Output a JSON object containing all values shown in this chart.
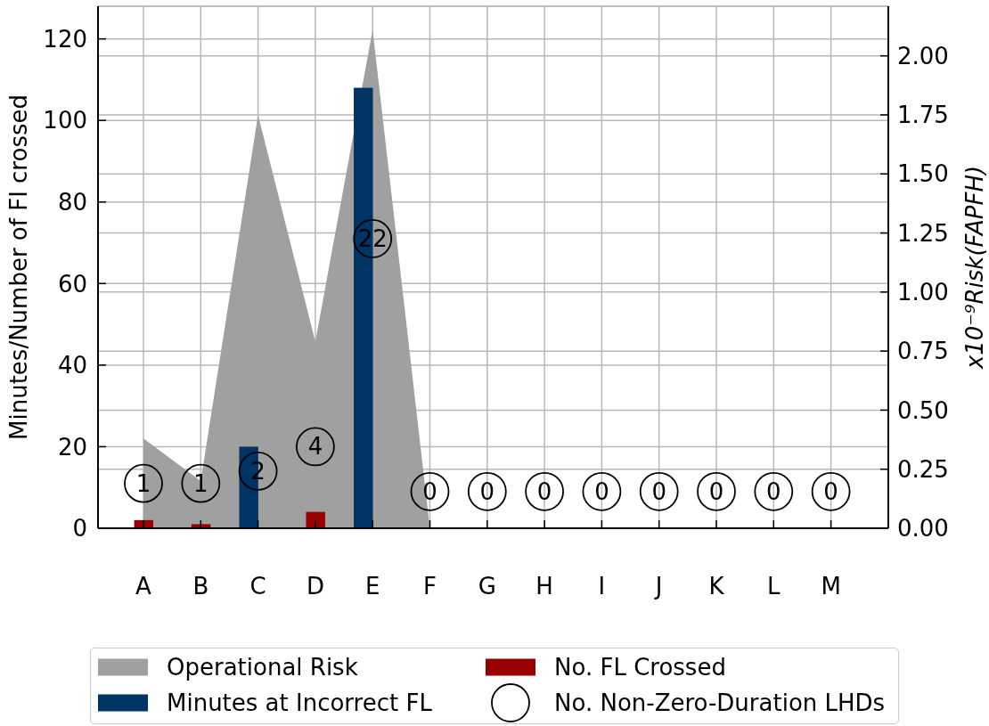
{
  "chart_data": {
    "type": "bar",
    "ylabel": "Minutes/Number of FI crossed",
    "y2label": "x10⁻⁹Risk(FAPFH)",
    "categories": [
      "A",
      "B",
      "C",
      "D",
      "E",
      "F",
      "G",
      "H",
      "I",
      "J",
      "K",
      "L",
      "M"
    ],
    "series": [
      {
        "name": "Operational Risk",
        "type": "area",
        "axis": "y2",
        "color": "#a0a0a0",
        "values": [
          0.38,
          0.2,
          1.75,
          0.79,
          2.11,
          0,
          0,
          0,
          0,
          0,
          0,
          0,
          0
        ]
      },
      {
        "name": "Minutes at Incorrect FL",
        "color": "#003366",
        "values": [
          0,
          0,
          20,
          0,
          108,
          0,
          0,
          0,
          0,
          0,
          0,
          0,
          0
        ]
      },
      {
        "name": "No. FL Crossed",
        "color": "#990000",
        "values": [
          2,
          1,
          0,
          4,
          0,
          0,
          0,
          0,
          0,
          0,
          0,
          0,
          0
        ]
      },
      {
        "name": "No. Non-Zero-Duration LHDs",
        "type": "scatter",
        "marker": "circle",
        "color": "#000000",
        "values": [
          11,
          11,
          14,
          20,
          71,
          9,
          9,
          9,
          9,
          9,
          9,
          9,
          9
        ]
      }
    ],
    "annotations": [
      {
        "text": "1",
        "x": "A",
        "y": 11
      },
      {
        "text": "1",
        "x": "B",
        "y": 11
      },
      {
        "text": "2",
        "x": "C",
        "y": 14
      },
      {
        "text": "4",
        "x": "D",
        "y": 20
      },
      {
        "text": "22",
        "x": "E",
        "y": 71
      },
      {
        "text": "0",
        "x": "F",
        "y": 9
      },
      {
        "text": "0",
        "x": "G",
        "y": 9
      },
      {
        "text": "0",
        "x": "H",
        "y": 9
      },
      {
        "text": "0",
        "x": "I",
        "y": 9
      },
      {
        "text": "0",
        "x": "J",
        "y": 9
      },
      {
        "text": "0",
        "x": "K",
        "y": 9
      },
      {
        "text": "0",
        "x": "L",
        "y": 9
      },
      {
        "text": "0",
        "x": "M",
        "y": 9
      }
    ],
    "ylim": [
      0,
      128
    ],
    "yticks": [
      0,
      20,
      40,
      60,
      80,
      100,
      120
    ],
    "y2lim": [
      0,
      2.21
    ],
    "y2ticks": [
      {
        "value": 0,
        "label": "0.00"
      },
      0.25,
      {
        "value": 0.5,
        "label": "0.50"
      },
      0.75,
      {
        "value": 1,
        "label": "1.00"
      },
      1.25,
      {
        "value": 1.5,
        "label": "1.50"
      },
      1.75,
      {
        "value": 2,
        "label": "2.00"
      }
    ],
    "grid": true,
    "legend": "bottom"
  }
}
